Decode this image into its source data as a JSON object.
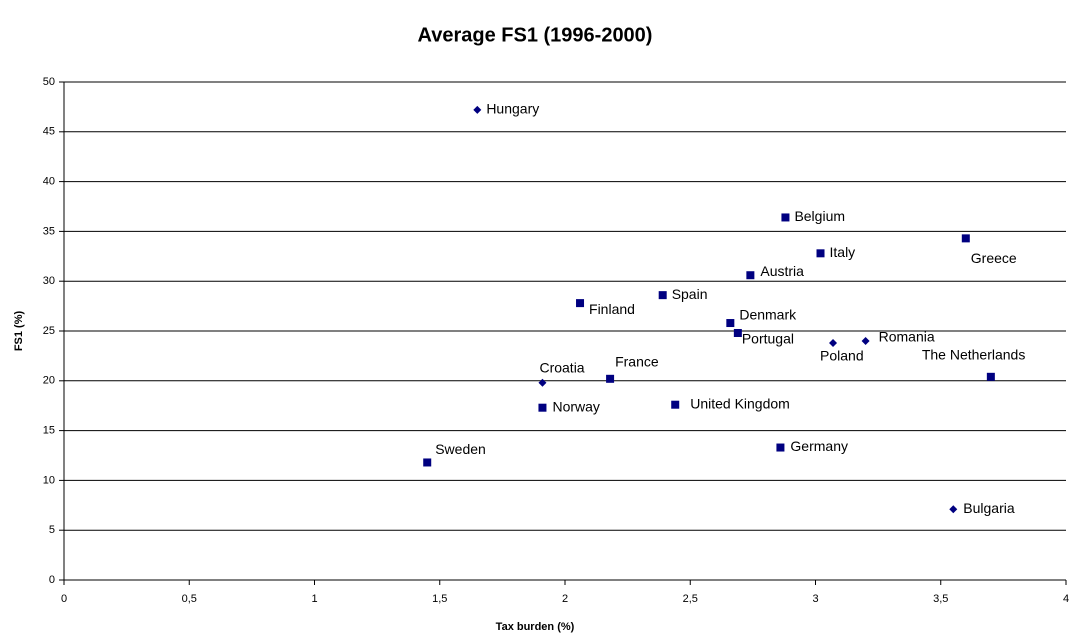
{
  "chart_data": {
    "type": "scatter",
    "title": "Average FS1 (1996-2000)",
    "x_label": "Tax burden (%)",
    "y_label": "FS1 (%)",
    "xlim": [
      0,
      4
    ],
    "ylim": [
      0,
      50
    ],
    "xticks": [
      0,
      {
        "value": 0.5,
        "label": "0,5"
      },
      1,
      {
        "value": 1.5,
        "label": "1,5"
      },
      2,
      {
        "value": 2.5,
        "label": "2,5"
      },
      3,
      {
        "value": 3.5,
        "label": "3,5"
      },
      4
    ],
    "yticks": [
      0,
      5,
      10,
      15,
      20,
      25,
      30,
      35,
      40,
      45,
      50
    ],
    "grid": true,
    "series": [
      {
        "color": "#000080",
        "labels": [
          "Hungary",
          "Belgium",
          "Greece",
          "Italy",
          "Austria",
          "Spain",
          "Finland",
          "Denmark",
          "Portugal",
          "Poland",
          "Romania",
          "The Netherlands",
          "Croatia",
          "France",
          "Norway",
          "United Kingdom",
          "Sweden",
          "Germany",
          "Bulgaria"
        ],
        "x": [
          1.65,
          2.88,
          3.6,
          3.02,
          2.74,
          2.39,
          2.06,
          2.66,
          2.69,
          3.07,
          3.2,
          3.7,
          1.91,
          2.18,
          1.91,
          2.44,
          1.45,
          2.86,
          3.55
        ],
        "values": [
          47.2,
          36.4,
          34.3,
          32.8,
          30.6,
          28.6,
          27.8,
          25.8,
          24.8,
          23.8,
          24.0,
          20.4,
          19.8,
          20.2,
          17.3,
          17.6,
          11.8,
          13.3,
          7.1
        ],
        "markers": [
          "diamond",
          "square",
          "square",
          "square",
          "square",
          "square",
          "square",
          "square",
          "square",
          "diamond",
          "diamond",
          "square",
          "diamond",
          "square",
          "square",
          "square",
          "square",
          "square",
          "diamond"
        ]
      }
    ]
  }
}
